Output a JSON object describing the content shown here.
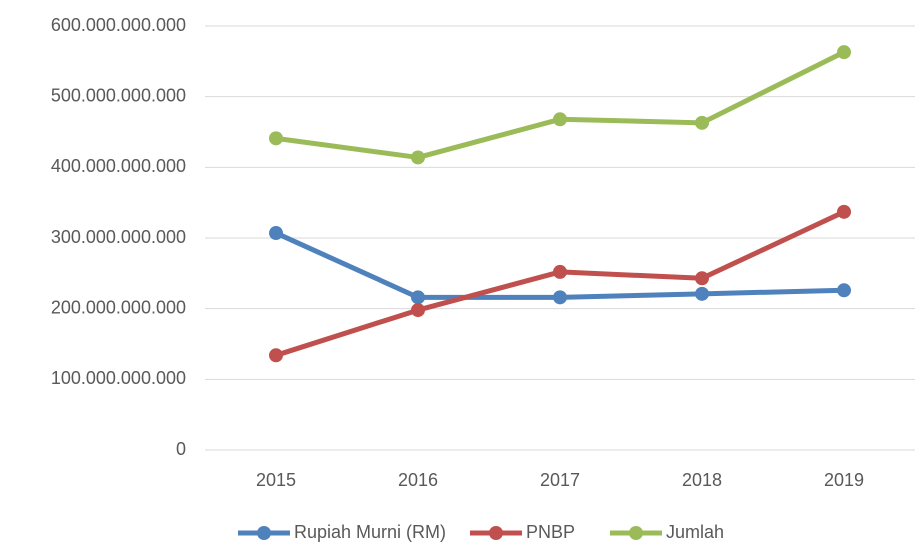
{
  "chart_data": {
    "type": "line",
    "categories": [
      "2015",
      "2016",
      "2017",
      "2018",
      "2019"
    ],
    "series": [
      {
        "name": "Rupiah Murni (RM)",
        "color": "#4f81bd",
        "values": [
          307000000000,
          216000000000,
          216000000000,
          221000000000,
          226000000000
        ]
      },
      {
        "name": "PNBP",
        "color": "#c0504d",
        "values": [
          134000000000,
          198000000000,
          252000000000,
          243000000000,
          337000000000
        ]
      },
      {
        "name": "Jumlah",
        "color": "#9bbb59",
        "values": [
          441000000000,
          414000000000,
          468000000000,
          463000000000,
          563000000000
        ]
      }
    ],
    "ylim": [
      0,
      600000000000
    ],
    "yticks": [
      0,
      {
        "value": 100000000000,
        "label": "100.000.000.000"
      },
      {
        "value": 200000000000,
        "label": "200.000.000.000"
      },
      {
        "value": 300000000000,
        "label": "300.000.000.000"
      },
      {
        "value": 400000000000,
        "label": "400.000.000.000"
      },
      {
        "value": 500000000000,
        "label": "500.000.000.000"
      },
      {
        "value": 600000000000,
        "label": "600.000.000.000"
      }
    ],
    "grid": true,
    "legend": "bottom"
  }
}
